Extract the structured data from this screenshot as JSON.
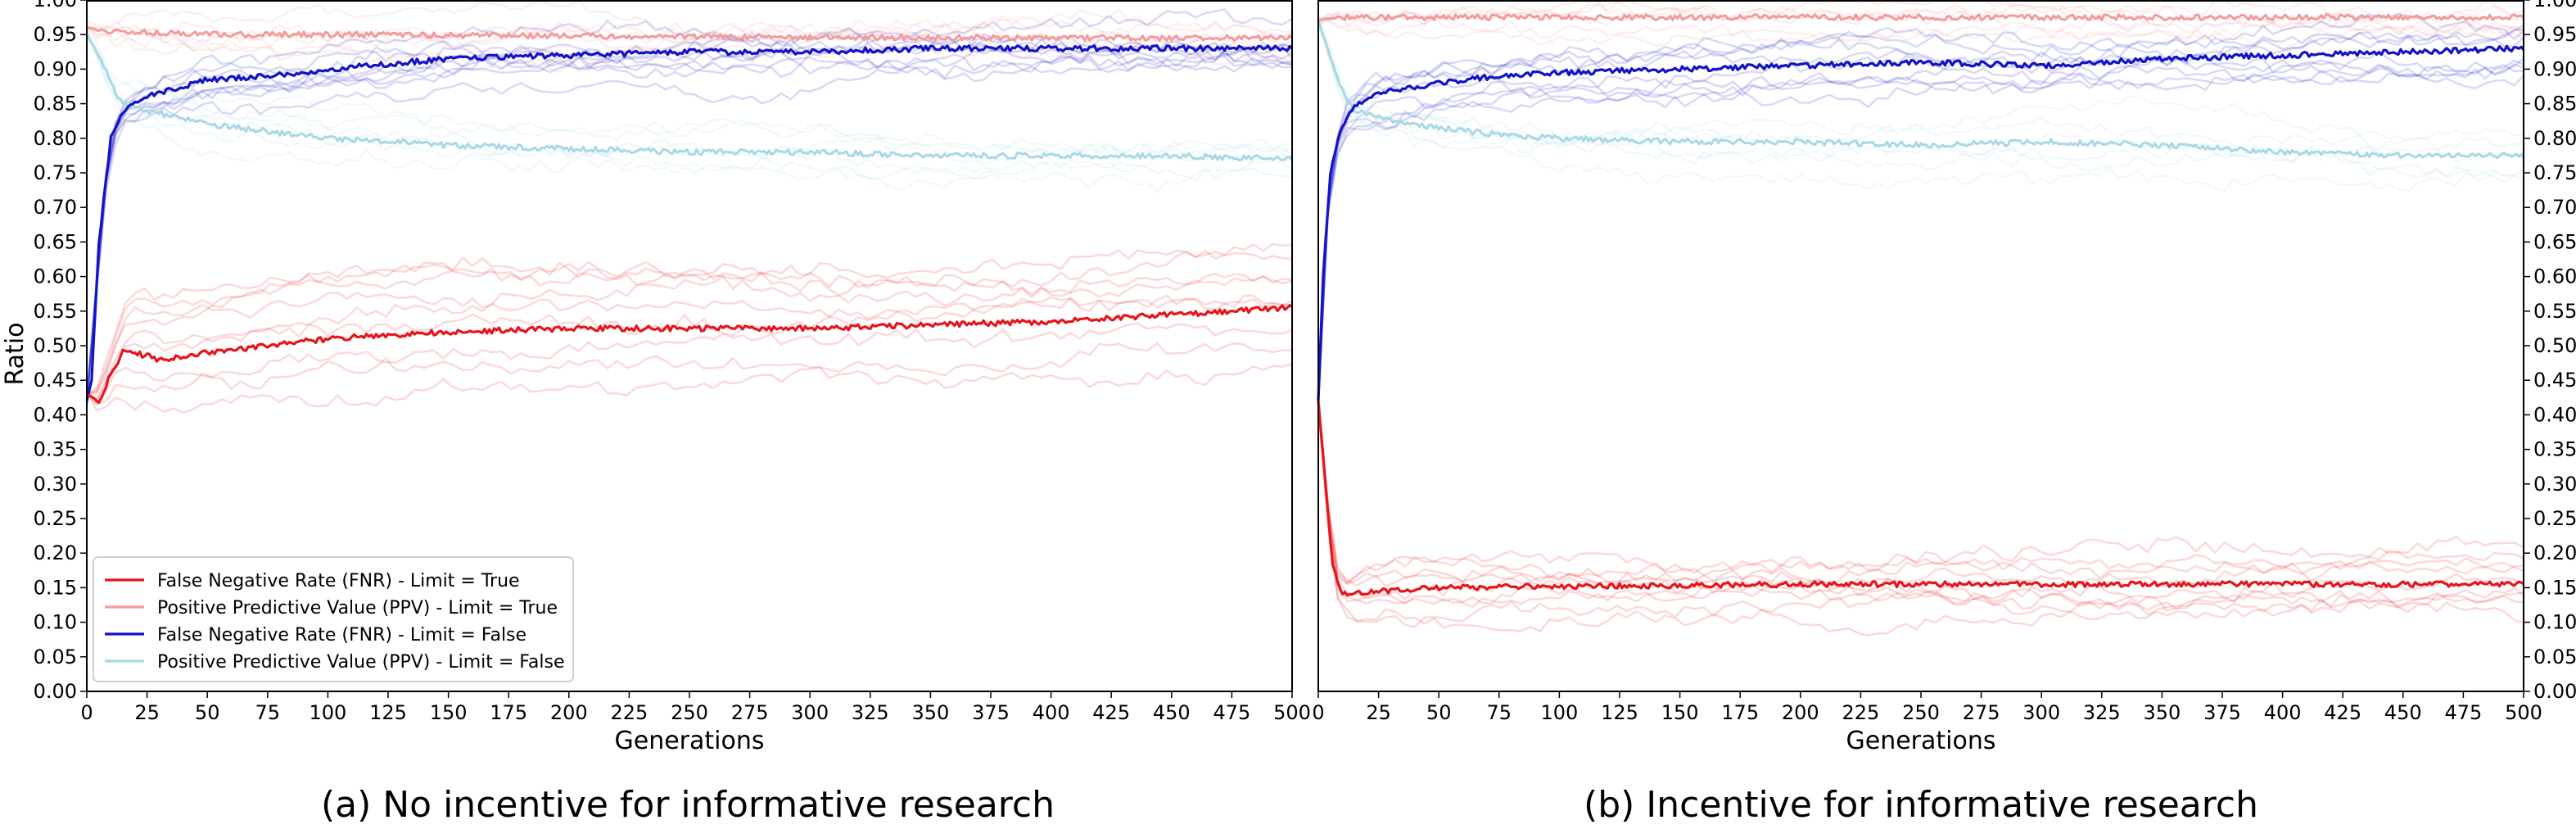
{
  "captions": [
    "(a) No incentive for informative research",
    "(b) Incentive for informative research"
  ],
  "colors": {
    "fnr_limit_true": "#e8141b",
    "ppv_limit_true": "#f49a9a",
    "fnr_limit_false": "#1212c8",
    "ppv_limit_false": "#a8d8e6"
  },
  "legend": [
    "False Negative Rate (FNR) - Limit = True",
    "Positive Predictive Value (PPV) - Limit = True",
    "False Negative Rate (FNR) - Limit = False",
    "Positive Predictive Value (PPV) - Limit = False"
  ],
  "chart_data": [
    {
      "type": "line",
      "title": "(a) No incentive for informative research",
      "xlabel": "Generations",
      "ylabel": "Ratio",
      "xlim": [
        0,
        500
      ],
      "ylim": [
        0,
        1
      ],
      "xticks": [
        0,
        25,
        50,
        75,
        100,
        125,
        150,
        175,
        200,
        225,
        250,
        275,
        300,
        325,
        350,
        375,
        400,
        425,
        450,
        475,
        500
      ],
      "yticks": [
        0.0,
        0.05,
        0.1,
        0.15,
        0.2,
        0.25,
        0.3,
        0.35,
        0.4,
        0.45,
        0.5,
        0.55,
        0.6,
        0.65,
        0.7,
        0.75,
        0.8,
        0.85,
        0.9,
        0.95,
        1.0
      ],
      "legend_position": "lower-left",
      "series": [
        {
          "name": "False Negative Rate (FNR) - Limit = True",
          "x": [
            0,
            5,
            10,
            15,
            20,
            30,
            50,
            75,
            100,
            150,
            200,
            250,
            300,
            350,
            400,
            450,
            500
          ],
          "y": [
            0.43,
            0.42,
            0.46,
            0.49,
            0.49,
            0.48,
            0.49,
            0.5,
            0.51,
            0.52,
            0.525,
            0.525,
            0.525,
            0.53,
            0.535,
            0.545,
            0.555
          ]
        },
        {
          "name": "Positive Predictive Value (PPV) - Limit = True",
          "x": [
            0,
            10,
            50,
            100,
            200,
            300,
            400,
            500
          ],
          "y": [
            0.96,
            0.955,
            0.95,
            0.95,
            0.948,
            0.946,
            0.945,
            0.945
          ]
        },
        {
          "name": "False Negative Rate (FNR) - Limit = False",
          "x": [
            0,
            2,
            5,
            10,
            15,
            25,
            50,
            75,
            100,
            150,
            200,
            250,
            300,
            350,
            400,
            450,
            500
          ],
          "y": [
            0.42,
            0.45,
            0.65,
            0.8,
            0.84,
            0.86,
            0.885,
            0.89,
            0.9,
            0.915,
            0.92,
            0.925,
            0.925,
            0.93,
            0.93,
            0.93,
            0.93
          ]
        },
        {
          "name": "Positive Predictive Value (PPV) - Limit = False",
          "x": [
            0,
            5,
            10,
            15,
            25,
            50,
            75,
            100,
            150,
            200,
            250,
            300,
            350,
            400,
            450,
            500
          ],
          "y": [
            0.95,
            0.92,
            0.88,
            0.85,
            0.84,
            0.82,
            0.81,
            0.8,
            0.79,
            0.785,
            0.78,
            0.78,
            0.775,
            0.775,
            0.775,
            0.77
          ]
        }
      ]
    },
    {
      "type": "line",
      "title": "(b) Incentive for informative research",
      "xlabel": "Generations",
      "ylabel": "",
      "xlim": [
        0,
        500
      ],
      "ylim": [
        0,
        1
      ],
      "xticks": [
        0,
        25,
        50,
        75,
        100,
        125,
        150,
        175,
        200,
        225,
        250,
        275,
        300,
        325,
        350,
        375,
        400,
        425,
        450,
        475,
        500
      ],
      "yticks": [
        0.0,
        0.05,
        0.1,
        0.15,
        0.2,
        0.25,
        0.3,
        0.35,
        0.4,
        0.45,
        0.5,
        0.55,
        0.6,
        0.65,
        0.7,
        0.75,
        0.8,
        0.85,
        0.9,
        0.95,
        1.0
      ],
      "series": [
        {
          "name": "False Negative Rate (FNR) - Limit = True",
          "x": [
            0,
            3,
            6,
            10,
            15,
            25,
            50,
            100,
            150,
            200,
            250,
            300,
            350,
            400,
            450,
            500
          ],
          "y": [
            0.42,
            0.3,
            0.18,
            0.14,
            0.14,
            0.145,
            0.15,
            0.152,
            0.153,
            0.155,
            0.155,
            0.155,
            0.155,
            0.155,
            0.155,
            0.155
          ]
        },
        {
          "name": "Positive Predictive Value (PPV) - Limit = True",
          "x": [
            0,
            5,
            50,
            100,
            200,
            300,
            400,
            500
          ],
          "y": [
            0.97,
            0.975,
            0.975,
            0.975,
            0.975,
            0.975,
            0.975,
            0.975
          ]
        },
        {
          "name": "False Negative Rate (FNR) - Limit = False",
          "x": [
            0,
            2,
            5,
            10,
            15,
            25,
            50,
            75,
            100,
            150,
            200,
            250,
            300,
            350,
            400,
            450,
            500
          ],
          "y": [
            0.42,
            0.6,
            0.75,
            0.82,
            0.845,
            0.865,
            0.88,
            0.89,
            0.895,
            0.9,
            0.905,
            0.91,
            0.905,
            0.915,
            0.92,
            0.925,
            0.93
          ]
        },
        {
          "name": "Positive Predictive Value (PPV) - Limit = False",
          "x": [
            0,
            5,
            10,
            15,
            25,
            50,
            75,
            100,
            150,
            200,
            250,
            300,
            350,
            400,
            450,
            500
          ],
          "y": [
            0.97,
            0.92,
            0.87,
            0.84,
            0.83,
            0.815,
            0.805,
            0.8,
            0.795,
            0.795,
            0.79,
            0.795,
            0.79,
            0.78,
            0.775,
            0.775
          ]
        }
      ]
    }
  ]
}
